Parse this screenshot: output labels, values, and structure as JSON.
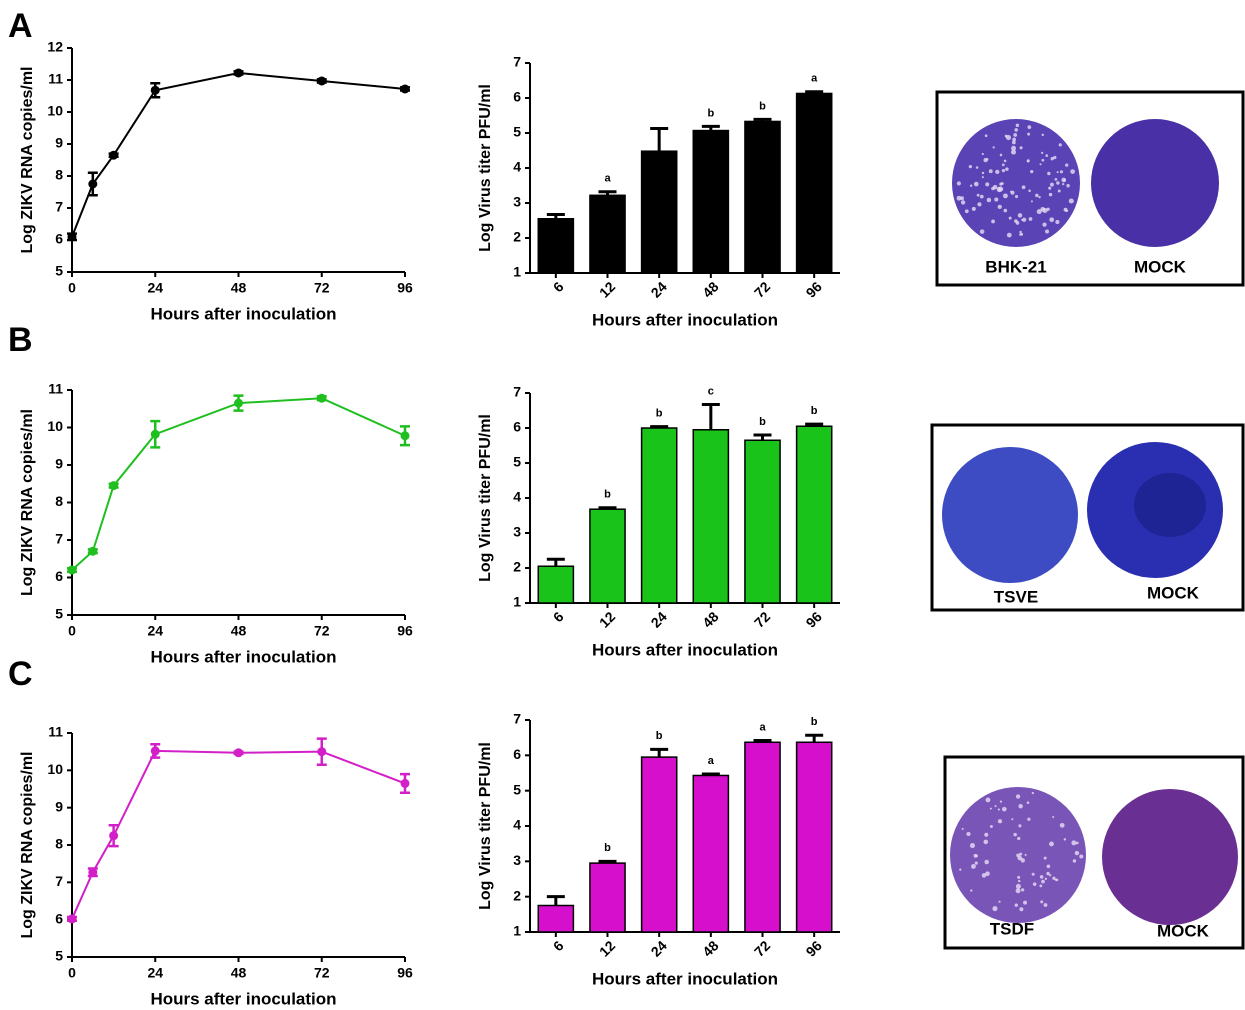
{
  "chart_data": [
    {
      "type": "line",
      "ylabel": "Log ZIKV RNA copies/ml",
      "xlabel": "Hours after inoculation",
      "color": "#000000",
      "x": [
        0,
        6,
        12,
        24,
        48,
        72,
        96
      ],
      "values": [
        6.1,
        7.75,
        8.65,
        10.68,
        11.22,
        10.97,
        10.72
      ],
      "errors": [
        0.1,
        0.35,
        0.05,
        0.22,
        0.05,
        0.05,
        0.05
      ],
      "xlim": [
        0,
        96
      ],
      "xticks": [
        0,
        24,
        48,
        72,
        96
      ],
      "ylim": [
        5,
        12
      ],
      "yticks": [
        5,
        6,
        7,
        8,
        9,
        10,
        11,
        12
      ]
    },
    {
      "type": "bar",
      "ylabel": "Log Virus titer PFU/ml",
      "xlabel": "Hours after inoculation",
      "color": "#000000",
      "categories": [
        "6",
        "12",
        "24",
        "48",
        "72",
        "96"
      ],
      "values": [
        2.55,
        3.22,
        4.48,
        5.07,
        5.33,
        6.13
      ],
      "errors": [
        0.12,
        0.1,
        0.65,
        0.12,
        0.06,
        0.05
      ],
      "annotations": [
        null,
        "a",
        null,
        "b",
        "b",
        "a"
      ],
      "ylim": [
        1,
        7
      ],
      "yticks": [
        1,
        2,
        3,
        4,
        5,
        6,
        7
      ]
    },
    {
      "type": "line",
      "ylabel": "Log ZIKV RNA copies/ml",
      "xlabel": "Hours after inoculation",
      "color": "#1fbf1f",
      "x": [
        0,
        6,
        12,
        24,
        48,
        72,
        96
      ],
      "values": [
        6.2,
        6.7,
        8.45,
        9.82,
        10.65,
        10.78,
        9.78
      ],
      "errors": [
        0.05,
        0.05,
        0.05,
        0.35,
        0.2,
        0.05,
        0.25
      ],
      "xlim": [
        0,
        96
      ],
      "xticks": [
        0,
        24,
        48,
        72,
        96
      ],
      "ylim": [
        5,
        11
      ],
      "yticks": [
        5,
        6,
        7,
        8,
        9,
        10,
        11
      ]
    },
    {
      "type": "bar",
      "ylabel": "Log Virus titer PFU/ml",
      "xlabel": "Hours after inoculation",
      "color": "#19c319",
      "categories": [
        "6",
        "12",
        "24",
        "48",
        "72",
        "96"
      ],
      "values": [
        2.05,
        3.68,
        6.0,
        5.95,
        5.65,
        6.05
      ],
      "errors": [
        0.2,
        0.04,
        0.04,
        0.72,
        0.15,
        0.06
      ],
      "annotations": [
        null,
        "b",
        "b",
        "c",
        "b",
        "b"
      ],
      "ylim": [
        1,
        7
      ],
      "yticks": [
        1,
        2,
        3,
        4,
        5,
        6,
        7
      ]
    },
    {
      "type": "line",
      "ylabel": "Log ZIKV RNA copies/ml",
      "xlabel": "Hours after inoculation",
      "color": "#d21fc8",
      "x": [
        0,
        6,
        12,
        24,
        48,
        72,
        96
      ],
      "values": [
        6.02,
        7.27,
        8.25,
        10.52,
        10.47,
        10.5,
        9.65
      ],
      "errors": [
        0.05,
        0.1,
        0.28,
        0.18,
        0.03,
        0.35,
        0.25
      ],
      "xlim": [
        0,
        96
      ],
      "xticks": [
        0,
        24,
        48,
        72,
        96
      ],
      "ylim": [
        5,
        11
      ],
      "yticks": [
        5,
        6,
        7,
        8,
        9,
        10,
        11
      ]
    },
    {
      "type": "bar",
      "ylabel": "Log Virus titer PFU/ml",
      "xlabel": "Hours after inoculation",
      "color": "#d50fcc",
      "categories": [
        "6",
        "12",
        "24",
        "48",
        "72",
        "96"
      ],
      "values": [
        1.75,
        2.95,
        5.95,
        5.43,
        6.37,
        6.37
      ],
      "errors": [
        0.25,
        0.05,
        0.22,
        0.04,
        0.05,
        0.2
      ],
      "annotations": [
        null,
        "b",
        "b",
        "a",
        "a",
        "b"
      ],
      "ylim": [
        1,
        7
      ],
      "yticks": [
        1,
        2,
        3,
        4,
        5,
        6,
        7
      ]
    }
  ],
  "panels": [
    {
      "label": "A",
      "plates": [
        "BHK-21",
        "MOCK"
      ]
    },
    {
      "label": "B",
      "plates": [
        "TSVE",
        "MOCK"
      ]
    },
    {
      "label": "C",
      "plates": [
        "TSDF",
        "MOCK"
      ]
    }
  ]
}
